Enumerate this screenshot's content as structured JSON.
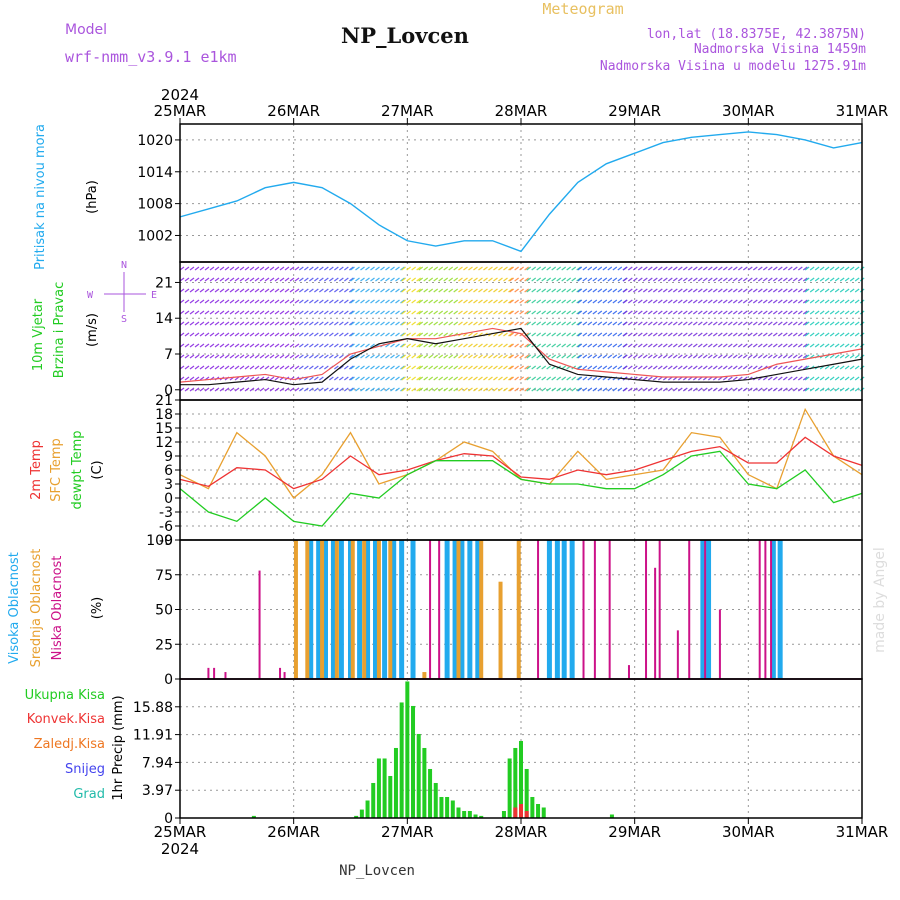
{
  "header": {
    "model_label": "Model",
    "model_name": "wrf-nmm_v3.9.1 e1km",
    "title": "NP_Lovcen",
    "meteogram_label": "Meteogram",
    "lonlat": "lon,lat (18.8375E, 42.3875N)",
    "elevation": "Nadmorska Visina 1459m",
    "model_elevation": "Nadmorska Visina u modelu 1275.91m"
  },
  "footer": {
    "station": "NP_Lovcen",
    "credit": "made by Angel"
  },
  "time_axis": {
    "year": "2024",
    "labels": [
      "25MAR",
      "26MAR",
      "27MAR",
      "28MAR",
      "29MAR",
      "30MAR",
      "31MAR"
    ],
    "days": [
      0,
      1,
      2,
      3,
      4,
      5,
      6
    ]
  },
  "panels": {
    "pressure": {
      "label": "Pritisak na nivou mora",
      "unit": "(hPa)",
      "color": "#22aaee"
    },
    "wind": {
      "label1": "10m Vjetar",
      "label2": "Brzina i Pravac",
      "unit": "(m/s)",
      "compass": [
        "N",
        "E",
        "S",
        "W"
      ],
      "color": "#22cc22"
    },
    "temp": {
      "label1": "2m Temp",
      "label2": "SFC Temp",
      "label3": "dewpt Temp",
      "unit": "(C)"
    },
    "cloud": {
      "label1": "Visoka Oblacnost",
      "label2": "Srednja Oblacnost",
      "label3": "Niska Oblacnost",
      "unit": "(%)"
    },
    "precip": {
      "label": "1hr Precip (mm)",
      "legend": [
        "Ukupna Kisa",
        "Konvek.Kisa",
        "Zaledj.Kisa",
        "Snijeg",
        "Grad"
      ]
    }
  },
  "colors": {
    "pressure": "#22aaee",
    "temp2m": "#ee3333",
    "sfc": "#e8a030",
    "dewpt": "#22cc22",
    "high": "#22aaee",
    "mid": "#e8a030",
    "low": "#cc1188",
    "rain": "#22cc22",
    "conv": "#ee3333",
    "frz": "#ee7722",
    "snow": "#4444ee",
    "hail": "#22bbaa",
    "purple": "#aa55dd",
    "gold": "#e8c060"
  },
  "chart_data": [
    {
      "type": "line",
      "title": "Pritisak na nivou mora",
      "ylabel": "(hPa)",
      "ylim": [
        997,
        1023
      ],
      "yticks": [
        1002,
        1008,
        1014,
        1020
      ],
      "x": [
        0,
        0.25,
        0.5,
        0.75,
        1,
        1.25,
        1.5,
        1.75,
        2,
        2.25,
        2.5,
        2.75,
        3,
        3.25,
        3.5,
        3.75,
        4,
        4.25,
        4.5,
        4.75,
        5,
        5.25,
        5.5,
        5.75,
        6
      ],
      "series": [
        {
          "values": [
            1005.5,
            1007,
            1008.5,
            1011,
            1012,
            1011,
            1008,
            1004,
            1001,
            1000,
            1001,
            1001,
            999,
            1006,
            1012,
            1015.5,
            1017.5,
            1019.5,
            1020.5,
            1021,
            1021.5,
            1021,
            1020,
            1018.5,
            1019.5
          ]
        }
      ]
    },
    {
      "type": "line",
      "title": "10m Vjetar Brzina i Pravac",
      "ylabel": "(m/s)",
      "ylim": [
        -2,
        25
      ],
      "yticks": [
        0,
        7,
        14,
        21
      ],
      "x": [
        0,
        0.25,
        0.5,
        0.75,
        1,
        1.25,
        1.5,
        1.75,
        2,
        2.25,
        2.5,
        2.75,
        3,
        3.25,
        3.5,
        3.75,
        4,
        4.25,
        4.5,
        4.75,
        5,
        5.25,
        5.5,
        5.75,
        6
      ],
      "series": [
        {
          "values": [
            1,
            1,
            1.5,
            2,
            1,
            1.5,
            6,
            9,
            10,
            9,
            10,
            11,
            12,
            5,
            3,
            2.5,
            2,
            1.5,
            1.5,
            1.5,
            2,
            3,
            4,
            5,
            6
          ]
        },
        {
          "values": [
            1.5,
            2,
            2.5,
            3,
            2,
            3,
            7,
            8.5,
            10,
            10,
            11,
            12,
            11,
            6,
            4,
            3.5,
            3,
            2.5,
            2.5,
            2.5,
            3,
            5,
            6,
            7,
            8
          ]
        }
      ],
      "direction_bands": [
        {
          "x": [
            0,
            1.05
          ],
          "color": "#8a2be2"
        },
        {
          "x": [
            1.05,
            1.5
          ],
          "color": "#5555ee"
        },
        {
          "x": [
            1.5,
            1.95
          ],
          "color": "#33aaee"
        },
        {
          "x": [
            1.95,
            2.1
          ],
          "color": "#eedd22"
        },
        {
          "x": [
            2.1,
            2.45
          ],
          "color": "#99dd33"
        },
        {
          "x": [
            2.45,
            2.9
          ],
          "color": "#eecc22"
        },
        {
          "x": [
            2.9,
            3.05
          ],
          "color": "#ff8844"
        },
        {
          "x": [
            3.05,
            3.5
          ],
          "color": "#33cc99"
        },
        {
          "x": [
            3.5,
            3.9
          ],
          "color": "#3366ee"
        },
        {
          "x": [
            3.9,
            5.5
          ],
          "color": "#7733dd"
        },
        {
          "x": [
            5.5,
            6
          ],
          "color": "#22ccbb"
        }
      ]
    },
    {
      "type": "line",
      "title": "Temperature",
      "ylabel": "(C)",
      "ylim": [
        -9,
        21
      ],
      "yticks": [
        -9,
        -6,
        -3,
        0,
        3,
        6,
        9,
        12,
        15,
        18,
        21
      ],
      "x": [
        0,
        0.25,
        0.5,
        0.75,
        1,
        1.25,
        1.5,
        1.75,
        2,
        2.25,
        2.5,
        2.75,
        3,
        3.25,
        3.5,
        3.75,
        4,
        4.25,
        4.5,
        4.75,
        5,
        5.25,
        5.5,
        5.75,
        6
      ],
      "series": [
        {
          "name": "2m Temp",
          "values": [
            4,
            2.5,
            6.5,
            6,
            2,
            4,
            9,
            5,
            6,
            8,
            9.5,
            9,
            4.5,
            4,
            6,
            5,
            6,
            8,
            10,
            11,
            7.5,
            7.5,
            13,
            9,
            7
          ]
        },
        {
          "name": "SFC Temp",
          "values": [
            5,
            2,
            14,
            9,
            0,
            5,
            14,
            3,
            5,
            8,
            12,
            10,
            4,
            3,
            10,
            4,
            5,
            6,
            14,
            13,
            5,
            2,
            19,
            9,
            5
          ]
        },
        {
          "name": "dewpt Temp",
          "values": [
            2,
            -3,
            -5,
            0,
            -5,
            -6,
            1,
            0,
            5,
            8,
            8,
            8,
            4,
            3,
            3,
            2,
            2,
            5,
            9,
            10,
            3,
            2,
            6,
            -1,
            1
          ]
        }
      ]
    },
    {
      "type": "bar",
      "title": "Oblacnost",
      "ylabel": "(%)",
      "ylim": [
        0,
        100
      ],
      "yticks": [
        0,
        25,
        50,
        75,
        100
      ],
      "series": [
        {
          "name": "Visoka Oblacnost",
          "x": [
            1.15,
            1.22,
            1.28,
            1.35,
            1.42,
            1.5,
            1.58,
            1.65,
            1.72,
            1.8,
            1.88,
            1.95,
            2.05,
            2.35,
            2.42,
            2.48,
            2.55,
            2.62,
            3.25,
            3.32,
            3.38,
            3.45,
            4.6,
            4.65,
            5.22,
            5.28
          ],
          "values": [
            100,
            100,
            100,
            100,
            100,
            100,
            100,
            100,
            100,
            100,
            100,
            100,
            100,
            100,
            100,
            100,
            100,
            100,
            100,
            100,
            100,
            100,
            100,
            100,
            100,
            100
          ]
        },
        {
          "name": "Srednja Oblacnost",
          "x": [
            1.02,
            1.12,
            1.25,
            1.38,
            1.52,
            1.62,
            1.75,
            1.85,
            2.15,
            2.45,
            2.65,
            2.82,
            2.98
          ],
          "values": [
            100,
            100,
            100,
            100,
            100,
            100,
            100,
            100,
            5,
            100,
            100,
            70,
            100
          ]
        },
        {
          "name": "Niska Oblacnost",
          "x": [
            0.25,
            0.3,
            0.4,
            0.7,
            0.88,
            0.92,
            2.2,
            2.28,
            3.15,
            3.55,
            3.65,
            3.78,
            3.95,
            4.1,
            4.18,
            4.22,
            4.38,
            4.48,
            4.62,
            4.75,
            5.1,
            5.15,
            5.2
          ],
          "values": [
            8,
            8,
            5,
            78,
            8,
            5,
            100,
            100,
            100,
            100,
            100,
            100,
            10,
            100,
            80,
            100,
            35,
            100,
            100,
            50,
            100,
            100,
            100
          ]
        }
      ]
    },
    {
      "type": "bar",
      "title": "1hr Precip",
      "ylabel": "(mm)",
      "ylim": [
        0,
        19.85
      ],
      "yticks": [
        0,
        3.97,
        7.94,
        11.91,
        15.88
      ],
      "series": [
        {
          "name": "Ukupna Kisa",
          "x": [
            0.65,
            1.55,
            1.6,
            1.65,
            1.7,
            1.75,
            1.8,
            1.85,
            1.9,
            1.95,
            2.0,
            2.05,
            2.1,
            2.15,
            2.2,
            2.25,
            2.3,
            2.35,
            2.4,
            2.45,
            2.5,
            2.55,
            2.6,
            2.65,
            2.85,
            2.9,
            2.95,
            3.0,
            3.05,
            3.1,
            3.15,
            3.2,
            3.8
          ],
          "values": [
            0.3,
            0.3,
            1.2,
            2.5,
            5,
            8.5,
            8.5,
            6,
            10,
            16.5,
            19.5,
            16,
            12,
            10,
            7,
            5,
            3,
            3,
            2.5,
            1.5,
            1,
            1,
            0.5,
            0.3,
            1,
            8.5,
            10,
            11,
            7,
            3,
            2,
            1.5,
            0.5
          ]
        },
        {
          "name": "Konvek.Kisa",
          "x": [
            2.95,
            3.0,
            3.05
          ],
          "values": [
            1.5,
            2,
            1
          ]
        },
        {
          "name": "Zaledj.Kisa",
          "x": [],
          "values": []
        },
        {
          "name": "Snijeg",
          "x": [],
          "values": []
        },
        {
          "name": "Grad",
          "x": [],
          "values": []
        }
      ]
    }
  ]
}
